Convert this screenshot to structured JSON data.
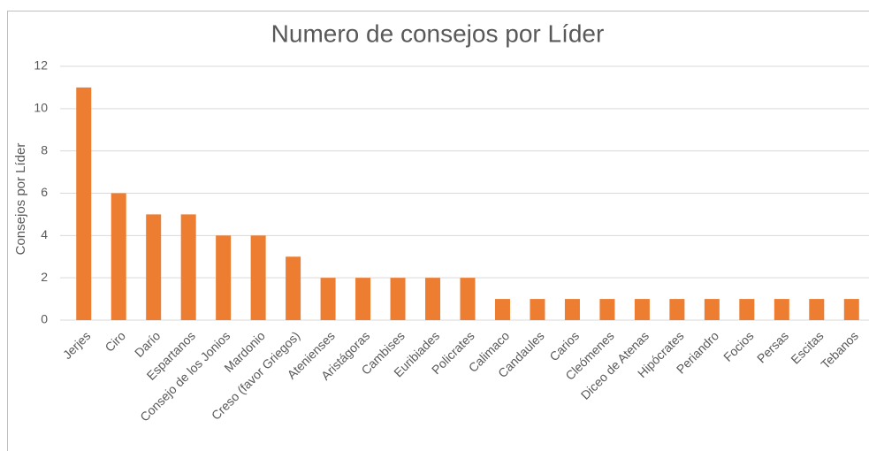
{
  "chart_data": {
    "type": "bar",
    "title": "Numero de consejos por Líder",
    "y_label": "Consejos por Líder",
    "categories": [
      "Jerjes",
      "Ciro",
      "Darío",
      "Espartanos",
      "Consejo de los Jonios",
      "Mardonio",
      "Creso (favor Griegos)",
      "Atenienses",
      "Aristágoras",
      "Cambises",
      "Euribiades",
      "Policrates",
      "Calimaco",
      "Candaules",
      "Carios",
      "Cleómenes",
      "Diceo de Atenas",
      "Hipócrates",
      "Periandro",
      "Focios",
      "Persas",
      "Escitas",
      "Tebanos"
    ],
    "values": [
      11,
      6,
      5,
      5,
      4,
      4,
      3,
      2,
      2,
      2,
      2,
      2,
      1,
      1,
      1,
      1,
      1,
      1,
      1,
      1,
      1,
      1,
      1
    ],
    "color": "#ed7d31",
    "ylim": [
      0,
      12
    ],
    "yticks": [
      0,
      2,
      4,
      6,
      8,
      10,
      12
    ],
    "grid": true
  }
}
